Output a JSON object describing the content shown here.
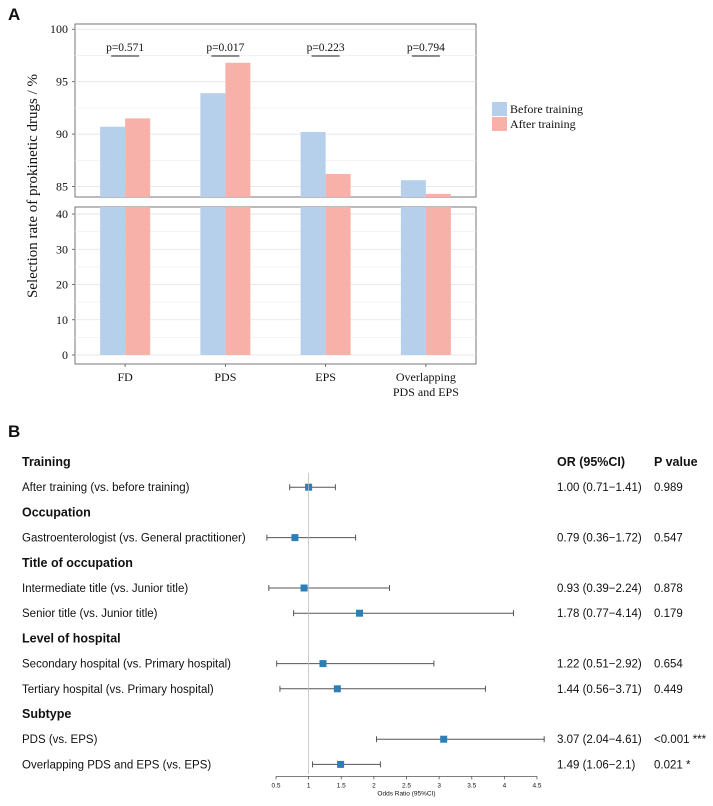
{
  "chart_data": [
    {
      "type": "bar",
      "panel_label": "A",
      "ylabel": "Selection rate of prokinetic drugs / %",
      "categories": [
        "FD",
        "PDS",
        "EPS",
        "Overlapping PDS and EPS"
      ],
      "category_labels": [
        [
          "FD"
        ],
        [
          "PDS"
        ],
        [
          "EPS"
        ],
        [
          "Overlapping",
          "PDS and EPS"
        ]
      ],
      "series": [
        {
          "name": "Before training",
          "color": "#b6cfea",
          "values": [
            90.7,
            93.9,
            90.2,
            85.6
          ]
        },
        {
          "name": "After training",
          "color": "#f8b1a8",
          "values": [
            91.5,
            96.8,
            86.2,
            84.3
          ]
        }
      ],
      "p_values": [
        "p=0.571",
        "p=0.017",
        "p=0.223",
        "p=0.794"
      ],
      "axis_break": {
        "lower": {
          "ylim": [
            0,
            42
          ],
          "ticks": [
            0,
            10,
            20,
            30,
            40
          ]
        },
        "upper": {
          "ylim": [
            84,
            100.5
          ],
          "ticks": [
            85,
            90,
            95,
            100
          ]
        }
      },
      "legend": "right"
    },
    {
      "type": "forest",
      "panel_label": "B",
      "columns": {
        "or": "OR (95%CI)",
        "p": "P value"
      },
      "xlabel": "Odds Ratio (95%CI)",
      "xlim": [
        0.5,
        4.5
      ],
      "xticks": [
        "0.5",
        "1",
        "1.5",
        "2",
        "2.5",
        "3",
        "3.5",
        "4",
        "4.5"
      ],
      "reference": 1,
      "color": "#2b7fb8",
      "rows": [
        {
          "kind": "header",
          "label": "Training"
        },
        {
          "kind": "item",
          "label": "After training (vs. before training)",
          "or": 1.0,
          "lo": 0.71,
          "hi": 1.41,
          "or_text": "1.00 (0.71−1.41)",
          "p_text": "0.989"
        },
        {
          "kind": "header",
          "label": "Occupation"
        },
        {
          "kind": "item",
          "label": "Gastroenterologist (vs. General practitioner)",
          "or": 0.79,
          "lo": 0.36,
          "hi": 1.72,
          "or_text": "0.79 (0.36−1.72)",
          "p_text": "0.547"
        },
        {
          "kind": "header",
          "label": "Title of occupation"
        },
        {
          "kind": "item",
          "label": "Intermediate title (vs. Junior title)",
          "or": 0.93,
          "lo": 0.39,
          "hi": 2.24,
          "or_text": "0.93 (0.39−2.24)",
          "p_text": "0.878"
        },
        {
          "kind": "item",
          "label": "Senior title (vs. Junior title)",
          "or": 1.78,
          "lo": 0.77,
          "hi": 4.14,
          "or_text": "1.78 (0.77−4.14)",
          "p_text": "0.179"
        },
        {
          "kind": "header",
          "label": "Level of hospital"
        },
        {
          "kind": "item",
          "label": "Secondary hospital (vs. Primary hospital)",
          "or": 1.22,
          "lo": 0.51,
          "hi": 2.92,
          "or_text": "1.22 (0.51−2.92)",
          "p_text": "0.654"
        },
        {
          "kind": "item",
          "label": "Tertiary hospital (vs. Primary hospital)",
          "or": 1.44,
          "lo": 0.56,
          "hi": 3.71,
          "or_text": "1.44 (0.56−3.71)",
          "p_text": "0.449"
        },
        {
          "kind": "header",
          "label": "Subtype"
        },
        {
          "kind": "item",
          "label": "PDS (vs. EPS)",
          "or": 3.07,
          "lo": 2.04,
          "hi": 4.61,
          "or_text": "3.07 (2.04−4.61)",
          "p_text": "<0.001 ***"
        },
        {
          "kind": "item",
          "label": "Overlapping PDS and EPS  (vs. EPS)",
          "or": 1.49,
          "lo": 1.06,
          "hi": 2.1,
          "or_text": "1.49 (1.06−2.1)",
          "p_text": "0.021 *"
        }
      ]
    }
  ]
}
